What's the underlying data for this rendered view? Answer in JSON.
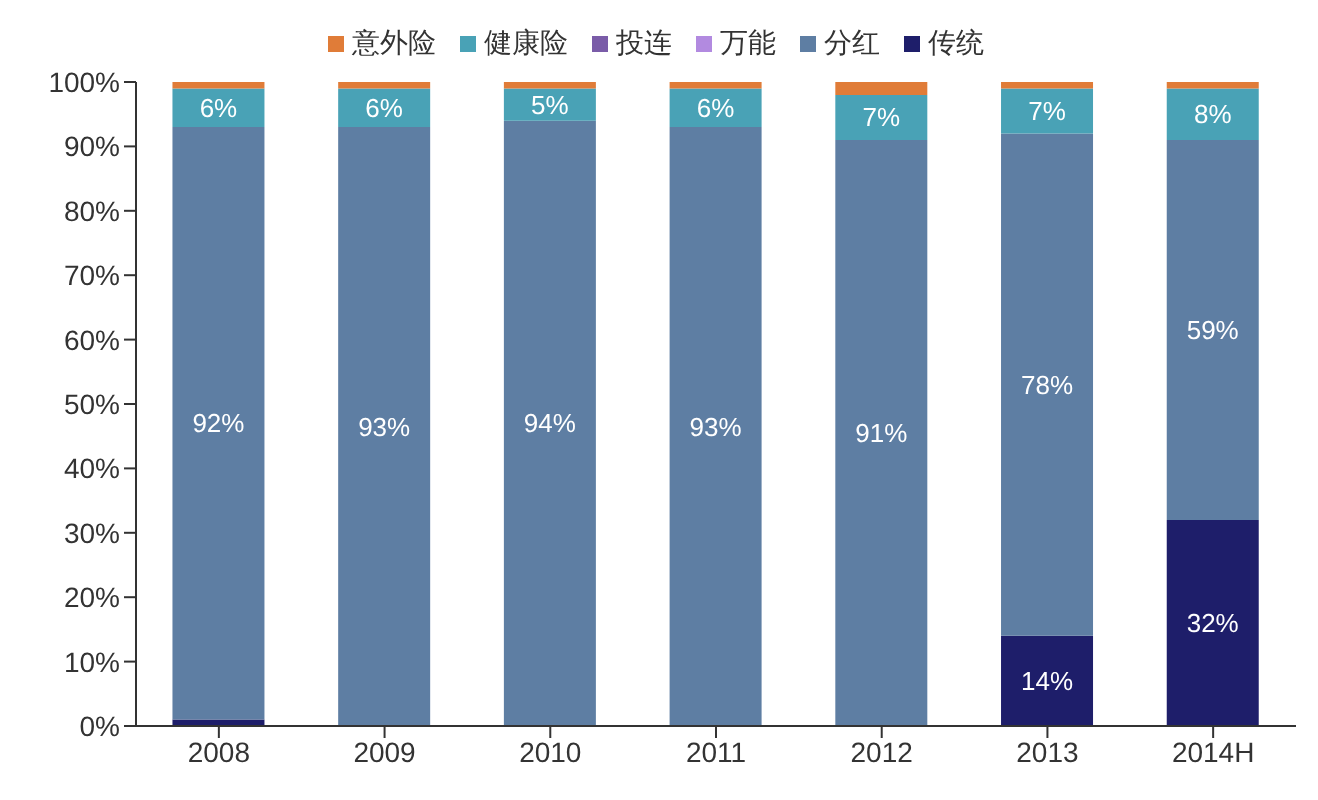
{
  "chart_data": {
    "type": "bar",
    "stacked": true,
    "categories": [
      "2008",
      "2009",
      "2010",
      "2011",
      "2012",
      "2013",
      "2014H"
    ],
    "series": [
      {
        "name": "传统",
        "color": "#1e1e6a",
        "values": [
          1,
          null,
          null,
          null,
          null,
          14,
          32
        ],
        "value_labels": [
          null,
          null,
          null,
          null,
          null,
          "14%",
          "32%"
        ]
      },
      {
        "name": "分红",
        "color": "#5e7ea3",
        "values": [
          92,
          93,
          94,
          93,
          91,
          78,
          59
        ],
        "value_labels": [
          "92%",
          "93%",
          "94%",
          "93%",
          "91%",
          "78%",
          "59%"
        ]
      },
      {
        "name": "万能",
        "color": "#b28ae0",
        "values": [
          0,
          0,
          0,
          0,
          0,
          0,
          0
        ]
      },
      {
        "name": "投连",
        "color": "#7a5ca8",
        "values": [
          0,
          0,
          0,
          0,
          0,
          0,
          0
        ]
      },
      {
        "name": "健康险",
        "color": "#49a2b6",
        "values": [
          6,
          6,
          5,
          6,
          7,
          7,
          8
        ],
        "value_labels": [
          "6%",
          "6%",
          "5%",
          "6%",
          "7%",
          "7%",
          "8%"
        ]
      },
      {
        "name": "意外险",
        "color": "#e07c38",
        "values": [
          1,
          1,
          1,
          1,
          2,
          1,
          1
        ]
      }
    ],
    "ylim": [
      0,
      100
    ],
    "yticks": [
      {
        "value": 0,
        "label": "0%"
      },
      {
        "value": 10,
        "label": "10%"
      },
      {
        "value": 20,
        "label": "20%"
      },
      {
        "value": 30,
        "label": "30%"
      },
      {
        "value": 40,
        "label": "40%"
      },
      {
        "value": 50,
        "label": "50%"
      },
      {
        "value": 60,
        "label": "60%"
      },
      {
        "value": 70,
        "label": "70%"
      },
      {
        "value": 80,
        "label": "80%"
      },
      {
        "value": 90,
        "label": "90%"
      },
      {
        "value": 100,
        "label": "100%"
      }
    ],
    "grid": false,
    "legend": "top"
  }
}
